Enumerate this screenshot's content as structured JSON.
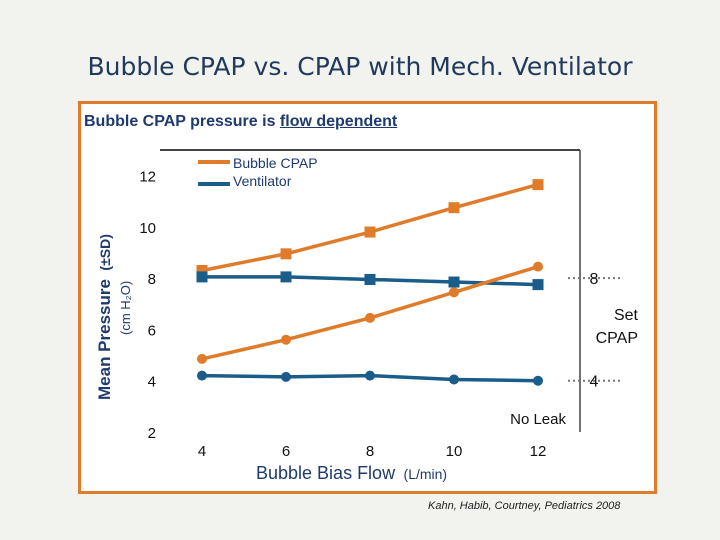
{
  "slide": {
    "title": "Bubble CPAP vs. CPAP with Mech. Ventilator",
    "heading_prefix": "Bubble CPAP pressure is ",
    "heading_underlined": "flow dependent",
    "citation": "Kahn, Habib, Courtney, Pediatrics 2008"
  },
  "chart_data": {
    "type": "line",
    "title": "",
    "xlabel": "Bubble Bias Flow",
    "xlabel_unit": "(L/min)",
    "ylabel": "Mean Pressure",
    "ylabel_suffix": "(±SD)",
    "ylabel_unit": "(cm H₂O)",
    "x": [
      4,
      6,
      8,
      10,
      12
    ],
    "xticks": [
      "4",
      "6",
      "8",
      "10",
      "12"
    ],
    "yticks": [
      "2",
      "4",
      "6",
      "8",
      "10",
      "12"
    ],
    "xlim": [
      3,
      13
    ],
    "ylim": [
      2,
      13
    ],
    "series": [
      {
        "name": "Bubble CPAP",
        "group": "8",
        "marker": "square",
        "color": "#e07b2a",
        "values": [
          8.3,
          8.95,
          9.8,
          10.75,
          11.65
        ]
      },
      {
        "name": "Ventilator",
        "group": "8",
        "marker": "square",
        "color": "#1a5c8a",
        "values": [
          8.05,
          8.05,
          7.95,
          7.85,
          7.75
        ]
      },
      {
        "name": "Bubble CPAP",
        "group": "4",
        "marker": "circle",
        "color": "#e07b2a",
        "values": [
          4.85,
          5.6,
          6.45,
          7.45,
          8.45
        ]
      },
      {
        "name": "Ventilator",
        "group": "4",
        "marker": "circle",
        "color": "#1a5c8a",
        "values": [
          4.2,
          4.15,
          4.2,
          4.05,
          4.0
        ]
      }
    ],
    "set_cpap_levels": [
      8,
      4
    ],
    "set_cpap_label_line1": "Set",
    "set_cpap_label_line2": "CPAP",
    "annotation": "No Leak",
    "legend": {
      "position": "top-left",
      "entries": [
        {
          "label": "Bubble CPAP",
          "color": "#e07b2a"
        },
        {
          "label": "Ventilator",
          "color": "#1a5c8a"
        }
      ]
    },
    "grid": false
  }
}
